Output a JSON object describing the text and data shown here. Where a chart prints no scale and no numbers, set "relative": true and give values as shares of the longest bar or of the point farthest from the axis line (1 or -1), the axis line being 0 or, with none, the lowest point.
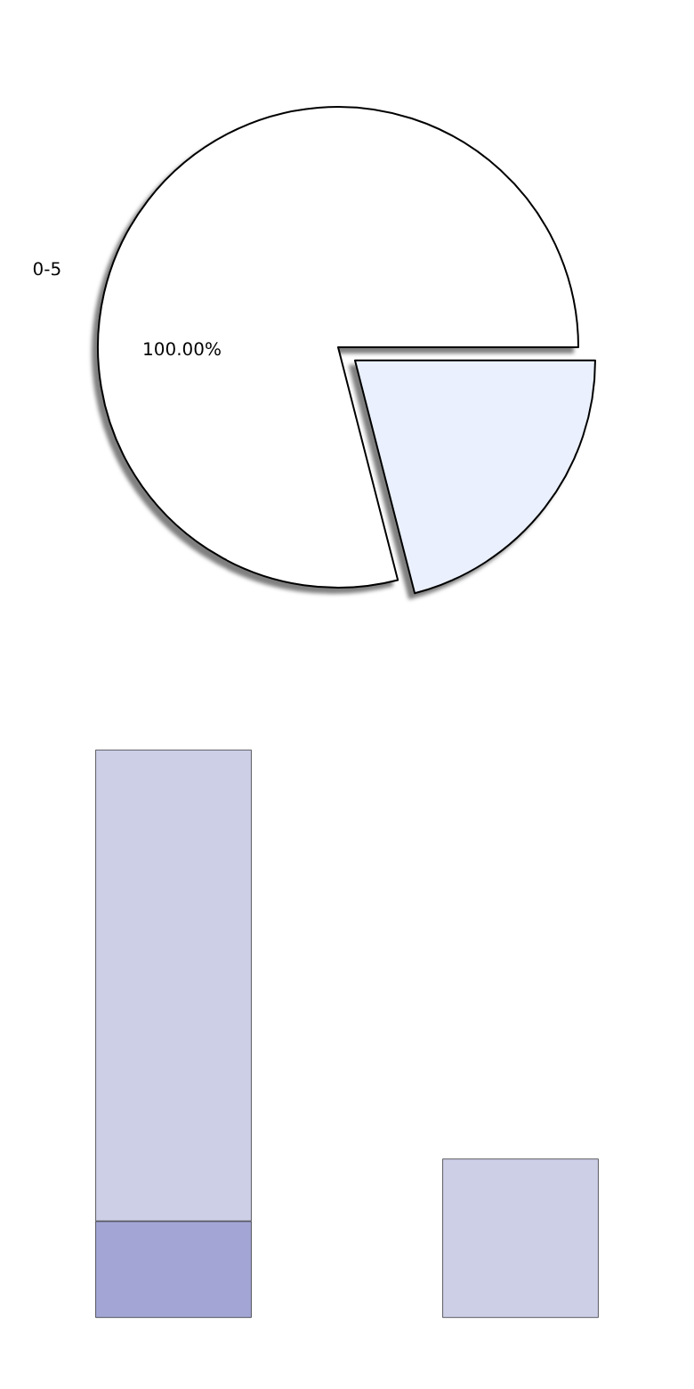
{
  "chart_data": [
    {
      "type": "pie",
      "categories": [
        "0-5",
        null
      ],
      "values": [
        79,
        21
      ],
      "colors": [
        "#ffffff",
        "#eaf0fe"
      ],
      "annotations": [
        "100.00%"
      ]
    },
    {
      "type": "bar",
      "relative": true,
      "stacked": true,
      "categories": [
        null,
        null
      ],
      "series": [
        {
          "color": "#a3a6d4",
          "values": [
            0.17,
            null
          ]
        },
        {
          "color": "#cccfe6",
          "values": [
            0.83,
            0.28
          ]
        }
      ]
    }
  ]
}
